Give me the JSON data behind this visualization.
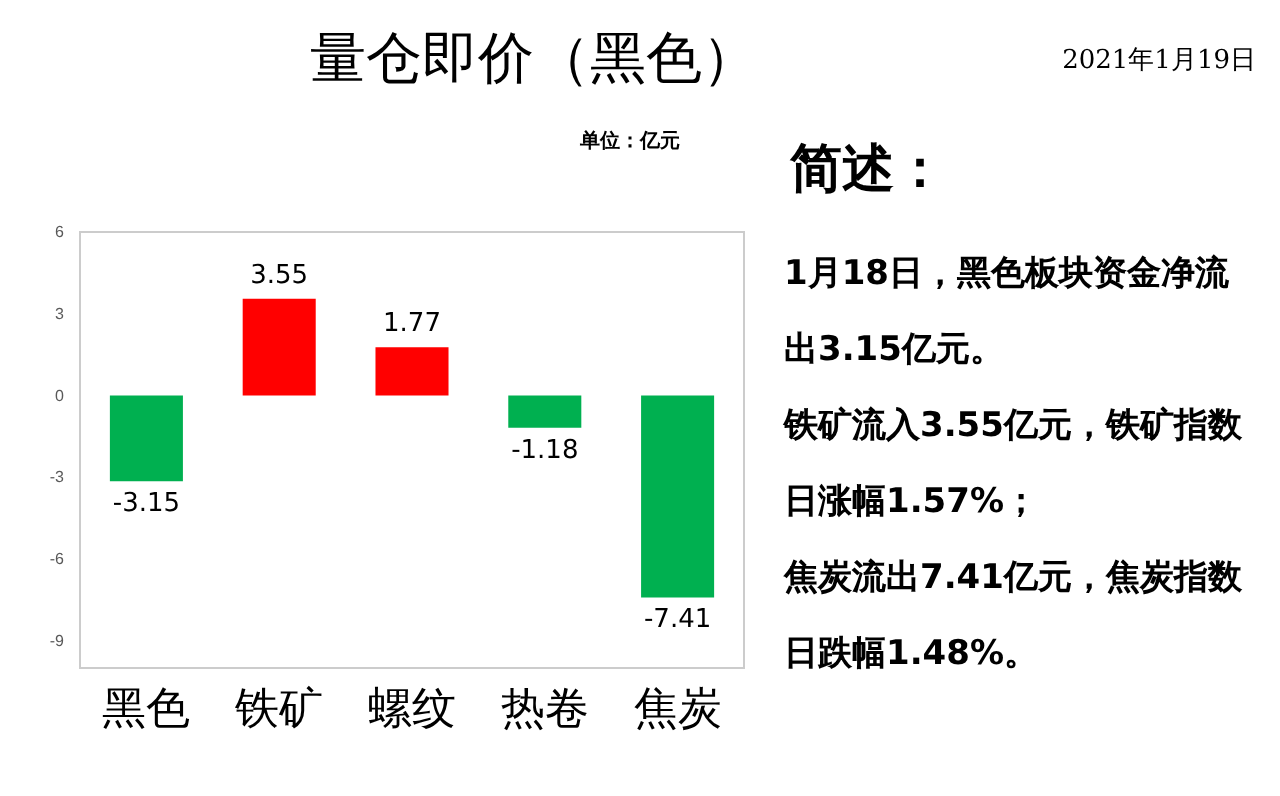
{
  "chart_data": {
    "type": "bar",
    "title": "量仓即价（黑色）",
    "subtitle": "单位：亿元",
    "categories": [
      "黑色",
      "铁矿",
      "螺纹",
      "热卷",
      "焦炭"
    ],
    "values": [
      -3.15,
      3.55,
      1.77,
      -1.18,
      -7.41
    ],
    "colors": [
      "#00b050",
      "#ff0000",
      "#ff0000",
      "#00b050",
      "#00b050"
    ],
    "ylim": [
      -10,
      6
    ],
    "yticks": [
      -9,
      -6,
      -3,
      0,
      3,
      6
    ],
    "data_labels": true,
    "annotations": [
      "2021年1月19日",
      "简述：",
      "1月18日，黑色板块资金净流出3.15亿元。",
      "铁矿流入3.55亿元，铁矿指数日涨幅1.57%；",
      "焦炭流出7.41亿元，焦炭指数日跌幅1.48%。"
    ]
  }
}
